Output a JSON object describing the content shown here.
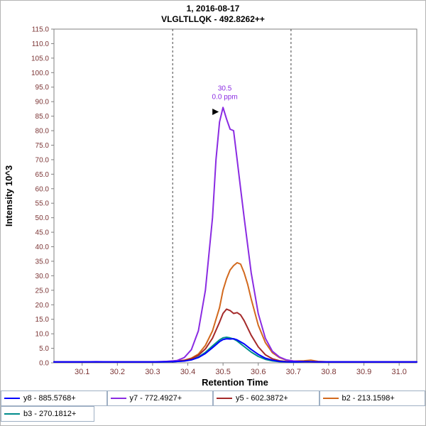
{
  "header": {
    "line1": "1, 2016-08-17",
    "line2": "VLGLTLLQK - 492.8262++"
  },
  "colors": {
    "tick_label": "#7b3434",
    "axis_title": "#000000",
    "plot_border": "#808080",
    "boundary_line": "#404040",
    "annotation": "#8A2BE2",
    "arrow": "#000000",
    "legend_border": "#9fb0c4"
  },
  "chart_data": {
    "type": "line",
    "title": "1, 2016-08-17",
    "subtitle": "VLGLTLLQK - 492.8262++",
    "xlabel": "Retention Time",
    "ylabel": "Intensity 10^3",
    "xlim": [
      30.02,
      31.05
    ],
    "ylim": [
      0,
      115
    ],
    "x_ticks": [
      30.1,
      30.2,
      30.3,
      30.4,
      30.5,
      30.6,
      30.7,
      30.8,
      30.9,
      31.0
    ],
    "y_tick_step": 5,
    "grid": false,
    "legend_position": "bottom",
    "peak_boundaries": [
      30.357,
      30.693
    ],
    "annotation": {
      "rt_label": "30.5",
      "ppm_label": "0.0 ppm",
      "x": 30.505,
      "peak_height": 88
    },
    "series": [
      {
        "key": "y8",
        "name": "y8 - 885.5768+",
        "color": "#0000FF",
        "points": [
          [
            30.02,
            0.3
          ],
          [
            30.08,
            0.3
          ],
          [
            30.14,
            0.3
          ],
          [
            30.2,
            0.3
          ],
          [
            30.26,
            0.3
          ],
          [
            30.32,
            0.3
          ],
          [
            30.36,
            0.4
          ],
          [
            30.39,
            0.6
          ],
          [
            30.41,
            1.0
          ],
          [
            30.43,
            1.8
          ],
          [
            30.45,
            3.2
          ],
          [
            30.47,
            5.2
          ],
          [
            30.49,
            7.3
          ],
          [
            30.5,
            8.0
          ],
          [
            30.51,
            8.3
          ],
          [
            30.52,
            8.2
          ],
          [
            30.53,
            8.3
          ],
          [
            30.54,
            7.9
          ],
          [
            30.56,
            6.5
          ],
          [
            30.58,
            4.6
          ],
          [
            30.6,
            2.9
          ],
          [
            30.62,
            1.6
          ],
          [
            30.64,
            0.9
          ],
          [
            30.66,
            0.5
          ],
          [
            30.68,
            0.35
          ],
          [
            30.71,
            0.3
          ],
          [
            30.74,
            0.45
          ],
          [
            30.76,
            0.35
          ],
          [
            30.8,
            0.3
          ],
          [
            30.86,
            0.3
          ],
          [
            30.92,
            0.3
          ],
          [
            31.0,
            0.3
          ],
          [
            31.05,
            0.3
          ]
        ]
      },
      {
        "key": "y7",
        "name": "y7 - 772.4927+",
        "color": "#8A2BE2",
        "points": [
          [
            30.02,
            0.3
          ],
          [
            30.08,
            0.3
          ],
          [
            30.14,
            0.4
          ],
          [
            30.2,
            0.3
          ],
          [
            30.26,
            0.3
          ],
          [
            30.3,
            0.35
          ],
          [
            30.34,
            0.5
          ],
          [
            30.37,
            0.8
          ],
          [
            30.39,
            1.8
          ],
          [
            30.41,
            4.5
          ],
          [
            30.43,
            11
          ],
          [
            30.45,
            25
          ],
          [
            30.47,
            50
          ],
          [
            30.48,
            70
          ],
          [
            30.49,
            83
          ],
          [
            30.5,
            88
          ],
          [
            30.51,
            84
          ],
          [
            30.52,
            80.5
          ],
          [
            30.53,
            80
          ],
          [
            30.54,
            70
          ],
          [
            30.55,
            60
          ],
          [
            30.56,
            50
          ],
          [
            30.58,
            31
          ],
          [
            30.6,
            17
          ],
          [
            30.62,
            8.5
          ],
          [
            30.64,
            4
          ],
          [
            30.66,
            2
          ],
          [
            30.68,
            1
          ],
          [
            30.7,
            0.6
          ],
          [
            30.73,
            0.4
          ],
          [
            30.76,
            0.35
          ],
          [
            30.8,
            0.3
          ],
          [
            30.85,
            0.3
          ],
          [
            30.9,
            0.3
          ],
          [
            30.95,
            0.3
          ],
          [
            31.0,
            0.3
          ],
          [
            31.05,
            0.3
          ]
        ]
      },
      {
        "key": "y5",
        "name": "y5 - 602.3872+",
        "color": "#A52A2A",
        "points": [
          [
            30.02,
            0.3
          ],
          [
            30.08,
            0.3
          ],
          [
            30.14,
            0.3
          ],
          [
            30.2,
            0.3
          ],
          [
            30.26,
            0.3
          ],
          [
            30.32,
            0.35
          ],
          [
            30.36,
            0.5
          ],
          [
            30.39,
            0.8
          ],
          [
            30.41,
            1.4
          ],
          [
            30.43,
            2.6
          ],
          [
            30.45,
            4.8
          ],
          [
            30.47,
            8.5
          ],
          [
            30.49,
            14
          ],
          [
            30.5,
            17
          ],
          [
            30.51,
            18.5
          ],
          [
            30.52,
            18
          ],
          [
            30.53,
            17
          ],
          [
            30.54,
            17.3
          ],
          [
            30.55,
            16.5
          ],
          [
            30.56,
            14.5
          ],
          [
            30.58,
            9.5
          ],
          [
            30.6,
            5.5
          ],
          [
            30.62,
            2.8
          ],
          [
            30.64,
            1.4
          ],
          [
            30.66,
            0.7
          ],
          [
            30.68,
            0.45
          ],
          [
            30.71,
            0.35
          ],
          [
            30.75,
            0.3
          ],
          [
            30.8,
            0.3
          ],
          [
            30.86,
            0.3
          ],
          [
            30.92,
            0.3
          ],
          [
            31.0,
            0.3
          ],
          [
            31.05,
            0.3
          ]
        ]
      },
      {
        "key": "b2",
        "name": "b2 - 213.1598+",
        "color": "#D2691E",
        "points": [
          [
            30.02,
            0.3
          ],
          [
            30.08,
            0.3
          ],
          [
            30.14,
            0.3
          ],
          [
            30.2,
            0.35
          ],
          [
            30.26,
            0.3
          ],
          [
            30.32,
            0.35
          ],
          [
            30.36,
            0.5
          ],
          [
            30.39,
            0.9
          ],
          [
            30.41,
            1.6
          ],
          [
            30.43,
            3
          ],
          [
            30.45,
            6
          ],
          [
            30.47,
            11
          ],
          [
            30.49,
            19
          ],
          [
            30.5,
            25
          ],
          [
            30.51,
            29
          ],
          [
            30.52,
            32
          ],
          [
            30.53,
            33.5
          ],
          [
            30.54,
            34.5
          ],
          [
            30.55,
            34
          ],
          [
            30.56,
            31
          ],
          [
            30.57,
            27
          ],
          [
            30.58,
            22
          ],
          [
            30.6,
            13
          ],
          [
            30.62,
            7
          ],
          [
            30.64,
            3.5
          ],
          [
            30.66,
            1.8
          ],
          [
            30.68,
            0.9
          ],
          [
            30.7,
            0.6
          ],
          [
            30.73,
            0.7
          ],
          [
            30.75,
            0.9
          ],
          [
            30.77,
            0.5
          ],
          [
            30.8,
            0.35
          ],
          [
            30.85,
            0.3
          ],
          [
            30.9,
            0.3
          ],
          [
            30.95,
            0.3
          ],
          [
            31.0,
            0.3
          ],
          [
            31.05,
            0.3
          ]
        ]
      },
      {
        "key": "b3",
        "name": "b3 - 270.1812+",
        "color": "#008B8B",
        "points": [
          [
            30.02,
            0.3
          ],
          [
            30.08,
            0.3
          ],
          [
            30.14,
            0.3
          ],
          [
            30.2,
            0.3
          ],
          [
            30.26,
            0.3
          ],
          [
            30.32,
            0.3
          ],
          [
            30.36,
            0.4
          ],
          [
            30.39,
            0.65
          ],
          [
            30.41,
            1.1
          ],
          [
            30.43,
            2
          ],
          [
            30.45,
            3.6
          ],
          [
            30.47,
            5.8
          ],
          [
            30.49,
            7.9
          ],
          [
            30.5,
            8.6
          ],
          [
            30.51,
            8.8
          ],
          [
            30.52,
            8.6
          ],
          [
            30.53,
            8.2
          ],
          [
            30.54,
            7.5
          ],
          [
            30.56,
            5.6
          ],
          [
            30.58,
            3.7
          ],
          [
            30.6,
            2.2
          ],
          [
            30.62,
            1.2
          ],
          [
            30.64,
            0.65
          ],
          [
            30.66,
            0.4
          ],
          [
            30.69,
            0.3
          ],
          [
            30.74,
            0.3
          ],
          [
            30.8,
            0.3
          ],
          [
            30.86,
            0.3
          ],
          [
            30.92,
            0.3
          ],
          [
            31.0,
            0.3
          ],
          [
            31.05,
            0.3
          ]
        ]
      }
    ]
  }
}
